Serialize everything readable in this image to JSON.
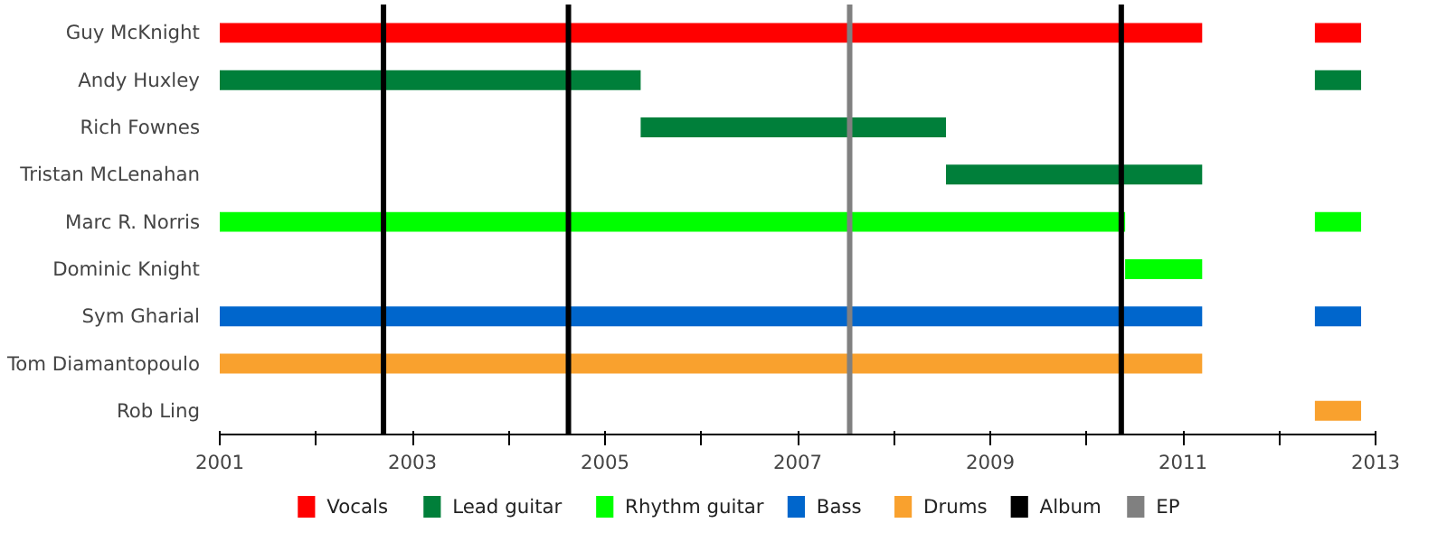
{
  "chart_data": {
    "type": "bar",
    "orientation": "horizontal",
    "categories": [
      "Guy McKnight",
      "Andy Huxley",
      "Rich Fownes",
      "Tristan McLenahan",
      "Marc R. Norris",
      "Dominic Knight",
      "Sym Gharial",
      "Tom Diamantopoulo",
      "Rob Ling"
    ],
    "series": [
      {
        "name": "Vocals",
        "color": "#ff0000",
        "base": [
          2001,
          null,
          null,
          null,
          null,
          null,
          null,
          null,
          null
        ],
        "values": [
          10.2,
          null,
          null,
          null,
          null,
          null,
          null,
          null,
          null
        ]
      },
      {
        "color": "#ff0000",
        "base": [
          2012.37,
          null,
          null,
          null,
          null,
          null,
          null,
          null,
          null
        ],
        "values": [
          0.48,
          null,
          null,
          null,
          null,
          null,
          null,
          null,
          null
        ]
      },
      {
        "name": "Lead guitar",
        "color": "#007f3a",
        "base": [
          null,
          2001,
          2005.37,
          2008.54,
          null,
          null,
          null,
          null,
          null
        ],
        "values": [
          null,
          4.37,
          3.17,
          2.66,
          null,
          null,
          null,
          null,
          null
        ]
      },
      {
        "color": "#007f3a",
        "base": [
          null,
          2012.37,
          null,
          null,
          null,
          null,
          null,
          null,
          null
        ],
        "values": [
          null,
          0.48,
          null,
          null,
          null,
          null,
          null,
          null,
          null
        ]
      },
      {
        "name": "Rhythm guitar",
        "color": "#00ff00",
        "base": [
          null,
          null,
          null,
          null,
          2001,
          2010.4,
          null,
          null,
          null
        ],
        "values": [
          null,
          null,
          null,
          null,
          9.4,
          0.8,
          null,
          null,
          null
        ]
      },
      {
        "color": "#00ff00",
        "base": [
          null,
          null,
          null,
          null,
          2012.37,
          null,
          null,
          null,
          null
        ],
        "values": [
          null,
          null,
          null,
          null,
          0.48,
          null,
          null,
          null,
          null
        ]
      },
      {
        "name": "Bass",
        "color": "#0066cc",
        "base": [
          null,
          null,
          null,
          null,
          null,
          null,
          2001,
          null,
          null
        ],
        "values": [
          null,
          null,
          null,
          null,
          null,
          null,
          10.2,
          null,
          null
        ]
      },
      {
        "color": "#0066cc",
        "base": [
          null,
          null,
          null,
          null,
          null,
          null,
          2012.37,
          null,
          null
        ],
        "values": [
          null,
          null,
          null,
          null,
          null,
          null,
          0.48,
          null,
          null
        ]
      },
      {
        "name": "Drums",
        "color": "#f9a12e",
        "base": [
          null,
          null,
          null,
          null,
          null,
          null,
          null,
          2001,
          2012.37
        ],
        "values": [
          null,
          null,
          null,
          null,
          null,
          null,
          null,
          10.2,
          0.48
        ]
      }
    ],
    "ref_lines": [
      {
        "axis": "x",
        "value": 2002.7,
        "label": "Album",
        "color": "#000000"
      },
      {
        "axis": "x",
        "value": 2004.62,
        "color": "#000000"
      },
      {
        "axis": "x",
        "value": 2010.36,
        "color": "#000000"
      },
      {
        "axis": "x",
        "value": 2007.54,
        "label": "EP",
        "color": "#808080"
      }
    ],
    "xlim": [
      2001,
      2013
    ],
    "xticks": [
      2001,
      {
        "value": 2002,
        "label": null
      },
      2003,
      {
        "value": 2004,
        "label": null
      },
      2005,
      {
        "value": 2006,
        "label": null
      },
      2007,
      {
        "value": 2008,
        "label": null
      },
      2009,
      {
        "value": 2010,
        "label": null
      },
      2011,
      {
        "value": 2012,
        "label": null
      },
      2013
    ],
    "grid": false,
    "legend": "bottom"
  }
}
